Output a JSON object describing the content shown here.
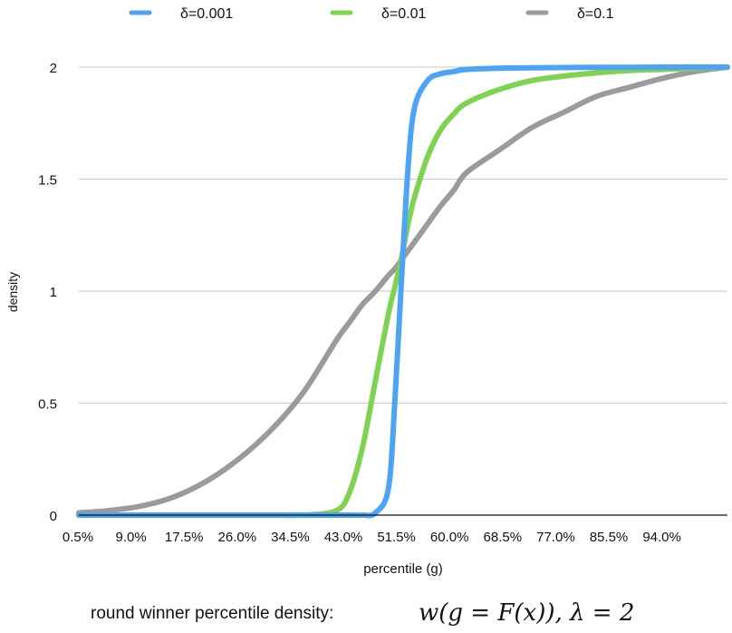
{
  "chart_data": {
    "type": "line",
    "xlabel": "percentile (g)",
    "ylabel": "density",
    "caption": "round winner percentile density:",
    "formula": "w(g = F(x)), λ = 2",
    "x_tick_labels": [
      "0.5%",
      "9.0%",
      "17.5%",
      "26.0%",
      "34.5%",
      "43.0%",
      "51.5%",
      "60.0%",
      "68.5%",
      "77.0%",
      "85.5%",
      "94.0%"
    ],
    "x_range": [
      0.005,
      1.0
    ],
    "ylim": [
      0,
      2
    ],
    "y_ticks": [
      0,
      0.5,
      1,
      1.5,
      2
    ],
    "y_tick_labels": [
      "0",
      "0.5",
      "1",
      "1.5",
      "2"
    ],
    "grid": "horizontal",
    "legend_position": "top",
    "x": [
      0.005,
      0.05,
      0.1,
      0.15,
      0.2,
      0.25,
      0.3,
      0.35,
      0.4,
      0.42,
      0.44,
      0.46,
      0.48,
      0.49,
      0.5,
      0.51,
      0.52,
      0.54,
      0.56,
      0.58,
      0.6,
      0.65,
      0.7,
      0.75,
      0.8,
      0.85,
      0.9,
      0.95,
      1.0
    ],
    "series": [
      {
        "name": "δ=0.001",
        "color": "#4DA3F5",
        "values": [
          0.0,
          0.0,
          0.0,
          0.0,
          0.0,
          0.0,
          0.0,
          0.0,
          0.0,
          0.0,
          0.0,
          0.01,
          0.12,
          0.52,
          1.05,
          1.55,
          1.82,
          1.94,
          1.97,
          1.98,
          1.99,
          1.995,
          1.997,
          1.998,
          1.999,
          1.999,
          2.0,
          2.0,
          2.0
        ]
      },
      {
        "name": "δ=0.01",
        "color": "#7ED450",
        "values": [
          0.0,
          0.0,
          0.0,
          0.0,
          0.0,
          0.0,
          0.0,
          0.0,
          0.02,
          0.1,
          0.3,
          0.6,
          0.9,
          1.02,
          1.15,
          1.3,
          1.42,
          1.6,
          1.72,
          1.79,
          1.84,
          1.9,
          1.94,
          1.96,
          1.975,
          1.985,
          1.99,
          1.995,
          2.0
        ]
      },
      {
        "name": "δ=0.1",
        "color": "#9B9B9B",
        "values": [
          0.01,
          0.02,
          0.04,
          0.08,
          0.15,
          0.25,
          0.38,
          0.55,
          0.78,
          0.86,
          0.94,
          1.0,
          1.07,
          1.1,
          1.14,
          1.18,
          1.22,
          1.3,
          1.38,
          1.45,
          1.53,
          1.63,
          1.73,
          1.8,
          1.87,
          1.91,
          1.95,
          1.98,
          2.0
        ]
      }
    ]
  }
}
